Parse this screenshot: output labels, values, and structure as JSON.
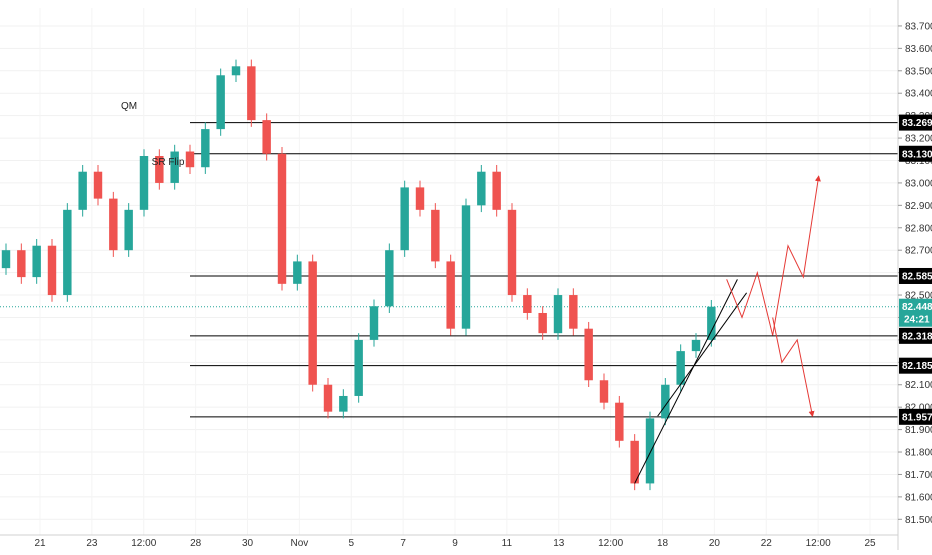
{
  "chart_data": {
    "type": "candlestick",
    "yaxis": {
      "ticks": [
        "81.500",
        "81.600",
        "81.700",
        "81.800",
        "81.900",
        "82.000",
        "82.100",
        "82.200",
        "82.300",
        "82.400",
        "82.500",
        "82.600",
        "82.700",
        "82.800",
        "82.900",
        "83.000",
        "83.100",
        "83.200",
        "83.300",
        "83.400",
        "83.500",
        "83.600",
        "83.700"
      ],
      "range": [
        81.43,
        83.78
      ]
    },
    "xaxis": {
      "ticks": [
        "21",
        "23",
        "12:00",
        "28",
        "30",
        "Nov",
        "5",
        "7",
        "9",
        "11",
        "13",
        "12:00",
        "18",
        "20",
        "22",
        "12:00",
        "25"
      ]
    },
    "price_levels": [
      {
        "value": 83.269,
        "label": "83.269",
        "color": "#000000"
      },
      {
        "value": 83.13,
        "label": "83.130",
        "color": "#000000"
      },
      {
        "value": 82.585,
        "label": "82.585",
        "color": "#000000"
      },
      {
        "value": 82.318,
        "label": "82.318",
        "color": "#000000"
      },
      {
        "value": 82.185,
        "label": "82.185",
        "color": "#000000"
      },
      {
        "value": 81.957,
        "label": "81.957",
        "color": "#000000"
      }
    ],
    "current_price": {
      "value": 82.448,
      "label": "82.448",
      "countdown": "24:21",
      "color": "#26a69a"
    },
    "annotations": [
      {
        "text": "QM",
        "x_index": 7.5,
        "y": 83.33
      },
      {
        "text": "SR Flip",
        "x_index": 9.5,
        "y": 83.08
      }
    ],
    "candles_close_path": [
      {
        "x": 0,
        "open": 82.62,
        "close": 82.7
      },
      {
        "x": 1,
        "open": 82.7,
        "close": 82.58
      },
      {
        "x": 2,
        "open": 82.58,
        "close": 82.72
      },
      {
        "x": 3,
        "open": 82.72,
        "close": 82.5
      },
      {
        "x": 4,
        "open": 82.5,
        "close": 82.88
      },
      {
        "x": 5,
        "open": 82.88,
        "close": 83.05
      },
      {
        "x": 6,
        "open": 83.05,
        "close": 82.93
      },
      {
        "x": 7,
        "open": 82.93,
        "close": 82.7
      },
      {
        "x": 8,
        "open": 82.7,
        "close": 82.88
      },
      {
        "x": 9,
        "open": 82.88,
        "close": 83.12
      },
      {
        "x": 10,
        "open": 83.12,
        "close": 83.0
      },
      {
        "x": 11,
        "open": 83.0,
        "close": 83.14
      },
      {
        "x": 12,
        "open": 83.14,
        "close": 83.07
      },
      {
        "x": 13,
        "open": 83.07,
        "close": 83.24
      },
      {
        "x": 14,
        "open": 83.24,
        "close": 83.48
      },
      {
        "x": 15,
        "open": 83.48,
        "close": 83.52
      },
      {
        "x": 16,
        "open": 83.52,
        "close": 83.28
      },
      {
        "x": 17,
        "open": 83.28,
        "close": 83.13
      },
      {
        "x": 18,
        "open": 83.13,
        "close": 82.55
      },
      {
        "x": 19,
        "open": 82.55,
        "close": 82.65
      },
      {
        "x": 20,
        "open": 82.65,
        "close": 82.1
      },
      {
        "x": 21,
        "open": 82.1,
        "close": 81.98
      },
      {
        "x": 22,
        "open": 81.98,
        "close": 82.05
      },
      {
        "x": 23,
        "open": 82.05,
        "close": 82.3
      },
      {
        "x": 24,
        "open": 82.3,
        "close": 82.45
      },
      {
        "x": 25,
        "open": 82.45,
        "close": 82.7
      },
      {
        "x": 26,
        "open": 82.7,
        "close": 82.98
      },
      {
        "x": 27,
        "open": 82.98,
        "close": 82.88
      },
      {
        "x": 28,
        "open": 82.88,
        "close": 82.65
      },
      {
        "x": 29,
        "open": 82.65,
        "close": 82.35
      },
      {
        "x": 30,
        "open": 82.35,
        "close": 82.9
      },
      {
        "x": 31,
        "open": 82.9,
        "close": 83.05
      },
      {
        "x": 32,
        "open": 83.05,
        "close": 82.88
      },
      {
        "x": 33,
        "open": 82.88,
        "close": 82.5
      },
      {
        "x": 34,
        "open": 82.5,
        "close": 82.42
      },
      {
        "x": 35,
        "open": 82.42,
        "close": 82.33
      },
      {
        "x": 36,
        "open": 82.33,
        "close": 82.5
      },
      {
        "x": 37,
        "open": 82.5,
        "close": 82.35
      },
      {
        "x": 38,
        "open": 82.35,
        "close": 82.12
      },
      {
        "x": 39,
        "open": 82.12,
        "close": 82.02
      },
      {
        "x": 40,
        "open": 82.02,
        "close": 81.85
      },
      {
        "x": 41,
        "open": 81.85,
        "close": 81.66
      },
      {
        "x": 42,
        "open": 81.66,
        "close": 81.95
      },
      {
        "x": 43,
        "open": 81.95,
        "close": 82.1
      },
      {
        "x": 44,
        "open": 82.1,
        "close": 82.25
      },
      {
        "x": 45,
        "open": 82.25,
        "close": 82.3
      },
      {
        "x": 46,
        "open": 82.3,
        "close": 82.448
      }
    ],
    "projections": [
      {
        "color": "#e53935",
        "points": [
          [
            47,
            82.57
          ],
          [
            48,
            82.4
          ],
          [
            49,
            82.6
          ],
          [
            50,
            82.32
          ],
          [
            51,
            82.72
          ],
          [
            52,
            82.58
          ],
          [
            53,
            83.03
          ]
        ]
      },
      {
        "color": "#e53935",
        "points": [
          [
            50,
            82.4
          ],
          [
            50.6,
            82.2
          ],
          [
            51.6,
            82.3
          ],
          [
            52.6,
            81.96
          ]
        ]
      }
    ],
    "trendlines": [
      {
        "color": "#000000",
        "points": [
          [
            41,
            81.66
          ],
          [
            47.7,
            82.57
          ]
        ]
      },
      {
        "color": "#000000",
        "points": [
          [
            42.5,
            81.96
          ],
          [
            48.3,
            82.51
          ]
        ]
      }
    ]
  }
}
